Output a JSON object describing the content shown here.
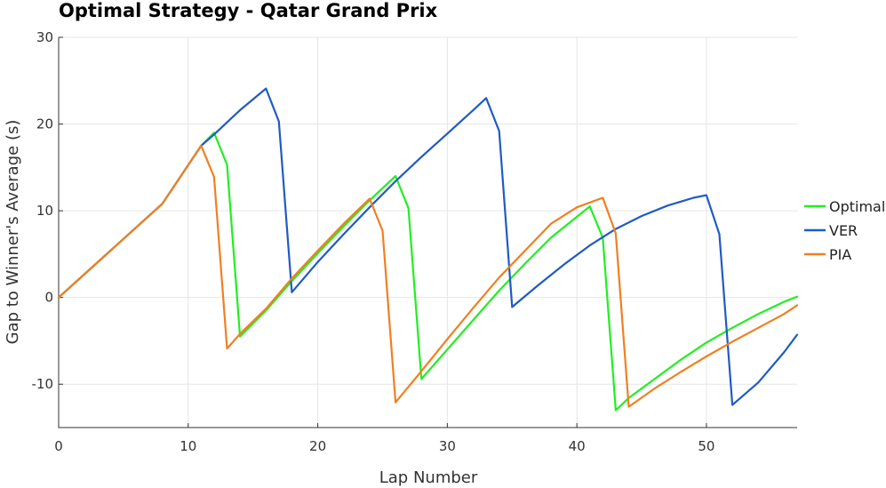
{
  "chart_data": {
    "type": "line",
    "title": "Optimal Strategy - Qatar Grand Prix",
    "xlabel": "Lap Number",
    "ylabel": "Gap to Winner's Average (s)",
    "xlim": [
      0,
      57
    ],
    "ylim": [
      -15,
      30
    ],
    "xticks": [
      0,
      10,
      20,
      30,
      40,
      50
    ],
    "yticks": [
      -10,
      0,
      10,
      20,
      30
    ],
    "grid": true,
    "legend_position": "right",
    "series": [
      {
        "name": "Optimal",
        "color": "#22ee22",
        "x": [
          0,
          4,
          8,
          11,
          12,
          13,
          14,
          16,
          18,
          20,
          22,
          24,
          26,
          27,
          28,
          30,
          32,
          34,
          36,
          38,
          40,
          41,
          42,
          43,
          44,
          46,
          48,
          50,
          52,
          54,
          56,
          57
        ],
        "y": [
          0,
          5.4,
          10.8,
          17.5,
          19.0,
          15.3,
          -4.5,
          -1.5,
          1.9,
          5.1,
          8.2,
          11.2,
          14.0,
          10.3,
          -9.4,
          -6.0,
          -2.6,
          0.8,
          3.9,
          6.9,
          9.3,
          10.5,
          6.9,
          -13.0,
          -11.6,
          -9.4,
          -7.2,
          -5.2,
          -3.5,
          -1.9,
          -0.5,
          0.1
        ]
      },
      {
        "name": "VER",
        "color": "#1f5bc4",
        "x": [
          0,
          4,
          8,
          11,
          12,
          14,
          16,
          17,
          18,
          20,
          22,
          24,
          26,
          28,
          30,
          32,
          33,
          34,
          35,
          37,
          39,
          41,
          43,
          45,
          47,
          49,
          50,
          51,
          52,
          54,
          56,
          57
        ],
        "y": [
          0,
          5.4,
          10.8,
          17.5,
          18.8,
          21.6,
          24.1,
          20.3,
          0.6,
          4.1,
          7.3,
          10.4,
          13.4,
          16.2,
          18.9,
          21.6,
          23.0,
          19.2,
          -1.1,
          1.4,
          3.8,
          6.0,
          7.9,
          9.4,
          10.6,
          11.5,
          11.8,
          7.3,
          -12.4,
          -9.8,
          -6.3,
          -4.3
        ]
      },
      {
        "name": "PIA",
        "color": "#f07f22",
        "x": [
          0,
          4,
          8,
          11,
          12,
          13,
          14,
          16,
          18,
          20,
          22,
          24,
          25,
          26,
          28,
          30,
          32,
          34,
          36,
          38,
          40,
          42,
          43,
          44,
          46,
          48,
          50,
          52,
          54,
          56,
          57
        ],
        "y": [
          0,
          5.4,
          10.8,
          17.5,
          13.9,
          -5.9,
          -4.2,
          -1.3,
          2.2,
          5.4,
          8.5,
          11.4,
          7.7,
          -12.1,
          -8.5,
          -4.8,
          -1.2,
          2.3,
          5.4,
          8.5,
          10.4,
          11.5,
          7.4,
          -12.6,
          -10.5,
          -8.6,
          -6.8,
          -5.1,
          -3.5,
          -1.9,
          -0.9
        ]
      }
    ]
  }
}
